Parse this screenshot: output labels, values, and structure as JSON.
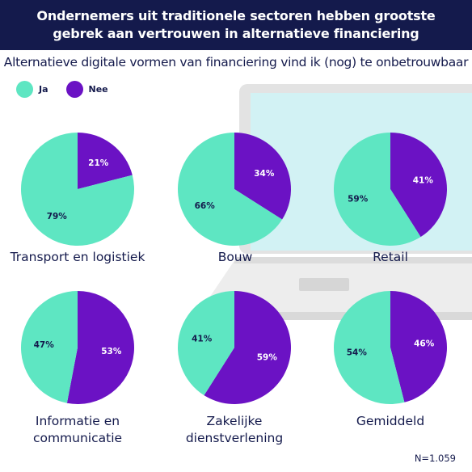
{
  "header": {
    "title": "Ondernemers uit traditionele sectoren hebben grootste gebrek aan vertrouwen in alternatieve financiering"
  },
  "subtitle": "Alternatieve digitale vormen van financiering vind ik (nog) te onbetrouwbaar",
  "legend": [
    {
      "label": "Ja",
      "color": "#5ee6c2"
    },
    {
      "label": "Nee",
      "color": "#6b12c4"
    }
  ],
  "footnote": "N=1.059",
  "chart_data": {
    "type": "pie",
    "series_names": [
      "Ja",
      "Nee"
    ],
    "colors": {
      "Ja": "#5ee6c2",
      "Nee": "#6b12c4"
    },
    "pies": [
      {
        "label": "Transport en logistiek",
        "values": {
          "Ja": 79,
          "Nee": 21
        },
        "labels": {
          "Ja": "79%",
          "Nee": "21%"
        }
      },
      {
        "label": "Bouw",
        "values": {
          "Ja": 66,
          "Nee": 34
        },
        "labels": {
          "Ja": "66%",
          "Nee": "34%"
        }
      },
      {
        "label": "Retail",
        "values": {
          "Ja": 59,
          "Nee": 41
        },
        "labels": {
          "Ja": "59%",
          "Nee": "41%"
        }
      },
      {
        "label": "Informatie en communicatie",
        "values": {
          "Ja": 47,
          "Nee": 53
        },
        "labels": {
          "Ja": "47%",
          "Nee": "53%"
        }
      },
      {
        "label": "Zakelijke dienstverlening",
        "values": {
          "Ja": 41,
          "Nee": 59
        },
        "labels": {
          "Ja": "41%",
          "Nee": "59%"
        }
      },
      {
        "label": "Gemiddeld",
        "values": {
          "Ja": 54,
          "Nee": 46
        },
        "labels": {
          "Ja": "54%",
          "Nee": "46%"
        }
      }
    ]
  }
}
